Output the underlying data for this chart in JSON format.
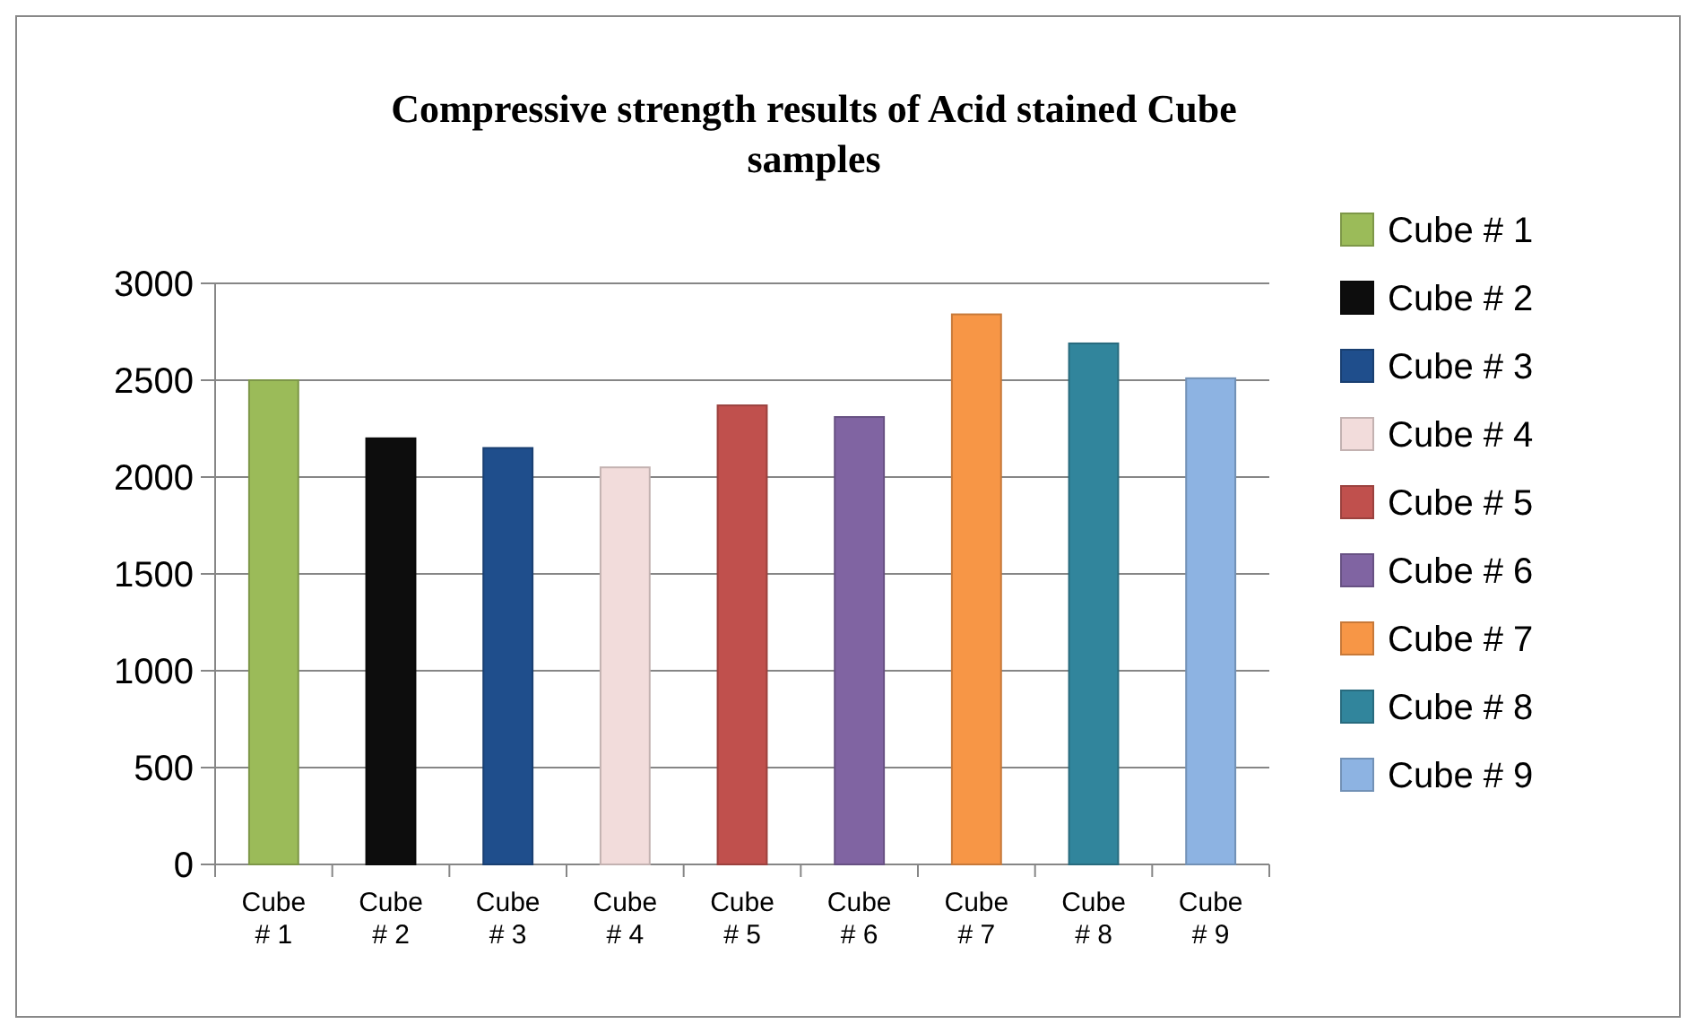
{
  "chart_data": {
    "type": "bar",
    "title": "Compressive strength results of Acid stained Cube samples",
    "categories": [
      "Cube # 1",
      "Cube # 2",
      "Cube # 3",
      "Cube # 4",
      "Cube # 5",
      "Cube # 6",
      "Cube # 7",
      "Cube # 8",
      "Cube # 9"
    ],
    "stacked": true,
    "series": [
      {
        "name": "Cube # 1",
        "color": "#9bbb59",
        "values": [
          2500,
          null,
          null,
          null,
          null,
          null,
          null,
          null,
          null
        ]
      },
      {
        "name": "Cube # 2",
        "color": "#0d0d0d",
        "values": [
          null,
          2200,
          null,
          null,
          null,
          null,
          null,
          null,
          null
        ]
      },
      {
        "name": "Cube # 3",
        "color": "#1f4e8c",
        "values": [
          null,
          null,
          2150,
          null,
          null,
          null,
          null,
          null,
          null
        ]
      },
      {
        "name": "Cube # 4",
        "color": "#f2dcdb",
        "values": [
          null,
          null,
          null,
          2050,
          null,
          null,
          null,
          null,
          null
        ]
      },
      {
        "name": "Cube # 5",
        "color": "#c0504d",
        "values": [
          null,
          null,
          null,
          null,
          2370,
          null,
          null,
          null,
          null
        ]
      },
      {
        "name": "Cube # 6",
        "color": "#8064a2",
        "values": [
          null,
          null,
          null,
          null,
          null,
          2310,
          null,
          null,
          null
        ]
      },
      {
        "name": "Cube # 7",
        "color": "#f79646",
        "values": [
          null,
          null,
          null,
          null,
          null,
          null,
          2840,
          null,
          null
        ]
      },
      {
        "name": "Cube # 8",
        "color": "#31859c",
        "values": [
          null,
          null,
          null,
          null,
          null,
          null,
          null,
          2690,
          null
        ]
      },
      {
        "name": "Cube # 9",
        "color": "#8db3e2",
        "values": [
          null,
          null,
          null,
          null,
          null,
          null,
          null,
          null,
          2510
        ]
      }
    ],
    "ylim": [
      0,
      3000
    ],
    "yticks": [
      0,
      500,
      1000,
      1500,
      2000,
      2500,
      3000
    ],
    "grid": "y",
    "legend": "right"
  }
}
